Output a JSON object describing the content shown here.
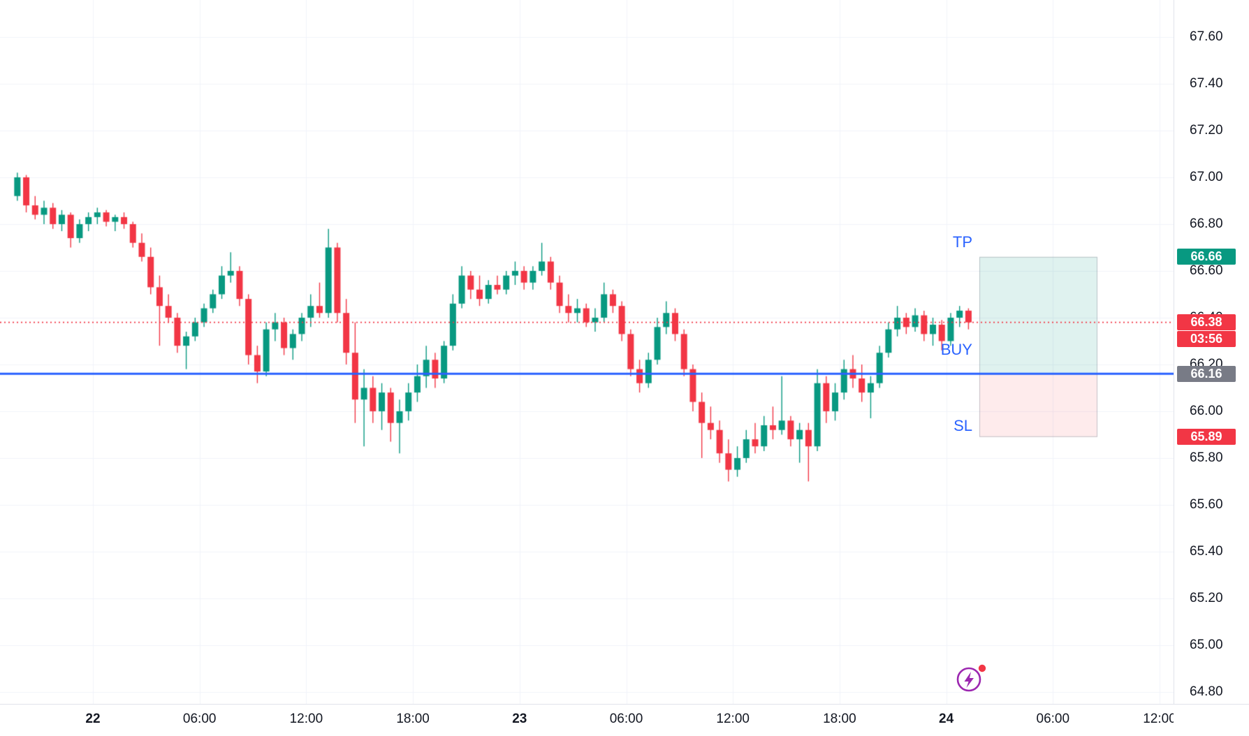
{
  "trade_tool": {
    "tp_label": "TP",
    "buy_label": "BUY",
    "sl_label": "SL",
    "tp_price": 66.66,
    "entry_price": 66.16,
    "sl_price": 65.89,
    "tp_text": "66.66",
    "entry_text": "66.16",
    "sl_text": "65.89"
  },
  "current": {
    "price": 66.38,
    "price_text": "66.38",
    "countdown": "03:56"
  },
  "colors": {
    "up": "#089981",
    "down": "#f23645",
    "entry_line": "#2962ff",
    "current_line": "#f23645",
    "grid": "#f0f3fa",
    "axis_text": "#131722",
    "axis_border": "#e0e3eb",
    "trade_label_text": "#2962ff",
    "profit_fill": "rgba(8,153,129,0.13)",
    "loss_fill": "rgba(242,54,69,0.10)",
    "zone_border": "rgba(150,155,165,0.55)",
    "logo_purple": "#9c27b0",
    "logo_dot": "#f23645"
  },
  "chart_data": {
    "type": "candlestick",
    "interval_minutes": 30,
    "x_unit": "hours since 00:00 of day 22",
    "start_offset_hours": -4.5,
    "grid": true,
    "y_visible_range": [
      64.75,
      67.76
    ],
    "y_ticks": [
      67.6,
      67.4,
      67.2,
      67.0,
      66.8,
      66.6,
      66.4,
      66.2,
      66.0,
      65.8,
      65.6,
      65.4,
      65.2,
      65.0,
      64.8
    ],
    "x_ticks": [
      {
        "label": "22",
        "t": 0,
        "bold": true
      },
      {
        "label": "06:00",
        "t": 6,
        "bold": false
      },
      {
        "label": "12:00",
        "t": 12,
        "bold": false
      },
      {
        "label": "18:00",
        "t": 18,
        "bold": false
      },
      {
        "label": "23",
        "t": 24,
        "bold": true
      },
      {
        "label": "06:00",
        "t": 30,
        "bold": false
      },
      {
        "label": "12:00",
        "t": 36,
        "bold": false
      },
      {
        "label": "18:00",
        "t": 42,
        "bold": false
      },
      {
        "label": "24",
        "t": 48,
        "bold": true
      },
      {
        "label": "06:00",
        "t": 54,
        "bold": false
      },
      {
        "label": "12:00",
        "t": 60,
        "bold": false
      }
    ],
    "overlays": {
      "entry_line": {
        "price": 66.16,
        "style": "solid",
        "color": "#2962ff"
      },
      "current_price_line": {
        "price": 66.38,
        "style": "dotted",
        "color": "#f23645"
      },
      "long_position_tool": {
        "entry": 66.16,
        "take_profit": 66.66,
        "stop_loss": 65.89
      }
    },
    "candles": [
      [
        66.92,
        67.02,
        66.9,
        67.0
      ],
      [
        67.0,
        67.01,
        66.85,
        66.88
      ],
      [
        66.88,
        66.92,
        66.82,
        66.84
      ],
      [
        66.84,
        66.9,
        66.8,
        66.87
      ],
      [
        66.87,
        66.89,
        66.78,
        66.8
      ],
      [
        66.8,
        66.86,
        66.77,
        66.84
      ],
      [
        66.84,
        66.85,
        66.7,
        66.74
      ],
      [
        66.74,
        66.82,
        66.72,
        66.8
      ],
      [
        66.8,
        66.85,
        66.77,
        66.83
      ],
      [
        66.83,
        66.87,
        66.8,
        66.85
      ],
      [
        66.85,
        66.86,
        66.79,
        66.81
      ],
      [
        66.81,
        66.84,
        66.77,
        66.83
      ],
      [
        66.83,
        66.85,
        66.78,
        66.8
      ],
      [
        66.8,
        66.81,
        66.7,
        66.72
      ],
      [
        66.72,
        66.76,
        66.64,
        66.66
      ],
      [
        66.66,
        66.7,
        66.5,
        66.53
      ],
      [
        66.53,
        66.58,
        66.28,
        66.45
      ],
      [
        66.45,
        66.5,
        66.38,
        66.4
      ],
      [
        66.4,
        66.42,
        66.25,
        66.28
      ],
      [
        66.28,
        66.34,
        66.18,
        66.32
      ],
      [
        66.32,
        66.4,
        66.3,
        66.38
      ],
      [
        66.38,
        66.46,
        66.36,
        66.44
      ],
      [
        66.44,
        66.52,
        66.42,
        66.5
      ],
      [
        66.5,
        66.62,
        66.48,
        66.58
      ],
      [
        66.58,
        66.68,
        66.55,
        66.6
      ],
      [
        66.6,
        66.62,
        66.45,
        66.48
      ],
      [
        66.48,
        66.5,
        66.2,
        66.24
      ],
      [
        66.24,
        66.28,
        66.12,
        66.17
      ],
      [
        66.17,
        66.38,
        66.15,
        66.35
      ],
      [
        66.35,
        66.42,
        66.3,
        66.38
      ],
      [
        66.38,
        66.4,
        66.24,
        66.27
      ],
      [
        66.27,
        66.35,
        66.22,
        66.33
      ],
      [
        66.33,
        66.42,
        66.3,
        66.4
      ],
      [
        66.4,
        66.5,
        66.36,
        66.45
      ],
      [
        66.45,
        66.55,
        66.4,
        66.42
      ],
      [
        66.42,
        66.78,
        66.4,
        66.7
      ],
      [
        66.7,
        66.72,
        66.38,
        66.42
      ],
      [
        66.42,
        66.48,
        66.2,
        66.25
      ],
      [
        66.25,
        66.38,
        65.95,
        66.05
      ],
      [
        66.05,
        66.18,
        65.85,
        66.1
      ],
      [
        66.1,
        66.15,
        65.95,
        66.0
      ],
      [
        66.0,
        66.12,
        65.92,
        66.08
      ],
      [
        66.08,
        66.1,
        65.87,
        65.95
      ],
      [
        65.95,
        66.05,
        65.82,
        66.0
      ],
      [
        66.0,
        66.12,
        65.96,
        66.08
      ],
      [
        66.08,
        66.2,
        66.04,
        66.15
      ],
      [
        66.15,
        66.28,
        66.1,
        66.22
      ],
      [
        66.22,
        66.25,
        66.1,
        66.14
      ],
      [
        66.14,
        66.3,
        66.12,
        66.28
      ],
      [
        66.28,
        66.5,
        66.26,
        66.46
      ],
      [
        66.46,
        66.62,
        66.44,
        66.58
      ],
      [
        66.58,
        66.6,
        66.48,
        66.52
      ],
      [
        66.52,
        66.58,
        66.45,
        66.48
      ],
      [
        66.48,
        66.56,
        66.46,
        66.54
      ],
      [
        66.54,
        66.58,
        66.5,
        66.52
      ],
      [
        66.52,
        66.6,
        66.5,
        66.58
      ],
      [
        66.58,
        66.64,
        66.54,
        66.6
      ],
      [
        66.6,
        66.62,
        66.52,
        66.55
      ],
      [
        66.55,
        66.62,
        66.52,
        66.6
      ],
      [
        66.6,
        66.72,
        66.58,
        66.64
      ],
      [
        66.64,
        66.66,
        66.52,
        66.55
      ],
      [
        66.55,
        66.58,
        66.42,
        66.45
      ],
      [
        66.45,
        66.5,
        66.38,
        66.42
      ],
      [
        66.42,
        66.48,
        66.38,
        66.44
      ],
      [
        66.44,
        66.46,
        66.36,
        66.38
      ],
      [
        66.38,
        66.44,
        66.34,
        66.4
      ],
      [
        66.4,
        66.55,
        66.38,
        66.5
      ],
      [
        66.5,
        66.52,
        66.42,
        66.45
      ],
      [
        66.45,
        66.47,
        66.3,
        66.33
      ],
      [
        66.33,
        66.35,
        66.15,
        66.18
      ],
      [
        66.18,
        66.22,
        66.08,
        66.12
      ],
      [
        66.12,
        66.25,
        66.1,
        66.22
      ],
      [
        66.22,
        66.4,
        66.2,
        66.36
      ],
      [
        66.36,
        66.47,
        66.33,
        66.42
      ],
      [
        66.42,
        66.44,
        66.3,
        66.33
      ],
      [
        66.33,
        66.35,
        66.15,
        66.18
      ],
      [
        66.18,
        66.2,
        66.0,
        66.04
      ],
      [
        66.04,
        66.08,
        65.8,
        65.95
      ],
      [
        65.95,
        66.02,
        65.88,
        65.92
      ],
      [
        65.92,
        65.96,
        65.78,
        65.82
      ],
      [
        65.82,
        65.88,
        65.7,
        65.75
      ],
      [
        65.75,
        65.85,
        65.72,
        65.8
      ],
      [
        65.8,
        65.92,
        65.78,
        65.88
      ],
      [
        65.88,
        65.95,
        65.82,
        65.85
      ],
      [
        65.85,
        65.98,
        65.83,
        65.94
      ],
      [
        65.94,
        66.02,
        65.88,
        65.92
      ],
      [
        65.92,
        66.15,
        65.9,
        65.96
      ],
      [
        65.96,
        65.98,
        65.85,
        65.88
      ],
      [
        65.88,
        65.95,
        65.78,
        65.92
      ],
      [
        65.92,
        65.95,
        65.7,
        65.85
      ],
      [
        65.85,
        66.18,
        65.83,
        66.12
      ],
      [
        66.12,
        66.15,
        65.95,
        66.0
      ],
      [
        66.0,
        66.12,
        65.96,
        66.08
      ],
      [
        66.08,
        66.22,
        66.05,
        66.18
      ],
      [
        66.18,
        66.24,
        66.1,
        66.14
      ],
      [
        66.14,
        66.2,
        66.04,
        66.08
      ],
      [
        66.08,
        66.15,
        65.97,
        66.12
      ],
      [
        66.12,
        66.28,
        66.1,
        66.25
      ],
      [
        66.25,
        66.38,
        66.23,
        66.35
      ],
      [
        66.35,
        66.45,
        66.32,
        66.4
      ],
      [
        66.4,
        66.42,
        66.33,
        66.36
      ],
      [
        66.36,
        66.44,
        66.34,
        66.41
      ],
      [
        66.41,
        66.43,
        66.3,
        66.33
      ],
      [
        66.33,
        66.4,
        66.28,
        66.37
      ],
      [
        66.37,
        66.39,
        66.26,
        66.3
      ],
      [
        66.3,
        66.42,
        66.28,
        66.4
      ],
      [
        66.4,
        66.45,
        66.36,
        66.43
      ],
      [
        66.43,
        66.44,
        66.35,
        66.38
      ]
    ]
  }
}
